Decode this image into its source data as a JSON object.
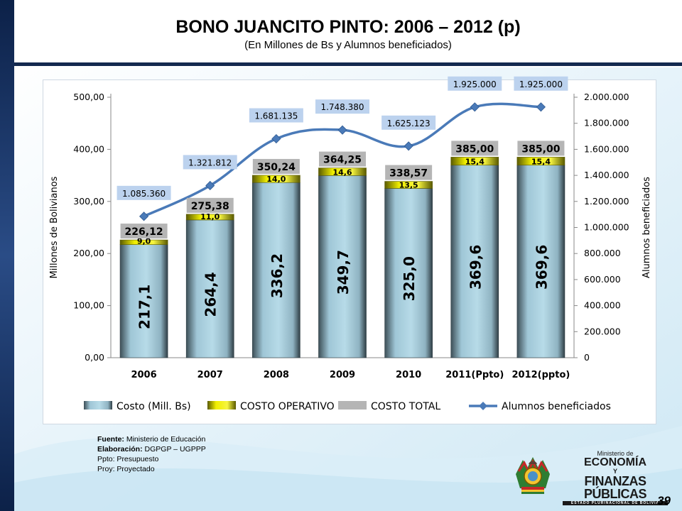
{
  "header": {
    "title": "BONO JUANCITO PINTO: 2006 – 2012 (p)",
    "subtitle": "(En Millones de Bs y Alumnos beneficiados)"
  },
  "chart_data": {
    "type": "bar",
    "stacked": true,
    "categories": [
      "2006",
      "2007",
      "2008",
      "2009",
      "2010",
      "2011(Ppto)",
      "2012(ppto)"
    ],
    "series": [
      {
        "name": "Costo (Mill. Bs)",
        "type": "bar",
        "axis": "left",
        "values": [
          217.1,
          264.4,
          336.2,
          349.7,
          325.0,
          369.6,
          369.6
        ],
        "labels": [
          "217,1",
          "264,4",
          "336,2",
          "349,7",
          "325,0",
          "369,6",
          "369,6"
        ]
      },
      {
        "name": "COSTO OPERATIVO",
        "type": "bar",
        "axis": "left",
        "values": [
          9.0,
          11.0,
          14.0,
          14.6,
          13.5,
          15.4,
          15.4
        ],
        "labels": [
          "9,0",
          "11,0",
          "14,0",
          "14,6",
          "13,5",
          "15,4",
          "15,4"
        ]
      },
      {
        "name": "COSTO TOTAL",
        "type": "label",
        "axis": "left",
        "values": [
          226.12,
          275.38,
          350.24,
          364.25,
          338.57,
          385.0,
          385.0
        ],
        "labels": [
          "226,12",
          "275,38",
          "350,24",
          "364,25",
          "338,57",
          "385,00",
          "385,00"
        ]
      },
      {
        "name": "Alumnos beneficiados",
        "type": "line",
        "axis": "right",
        "values": [
          1085360,
          1321812,
          1681135,
          1748380,
          1625123,
          1925000,
          1925000
        ],
        "labels": [
          "1.085.360",
          "1.321.812",
          "1.681.135",
          "1.748.380",
          "1.625.123",
          "1.925.000",
          "1.925.000"
        ]
      }
    ],
    "ylabel": "Millones de Bolivianos",
    "y2label": "Alumnos beneficiados",
    "ylim": [
      0,
      500
    ],
    "y2lim": [
      0,
      2000000
    ],
    "yticks": [
      "0,00",
      "100,00",
      "200,00",
      "300,00",
      "400,00",
      "500,00"
    ],
    "y2ticks": [
      "0",
      "200.000",
      "400.000",
      "600.000",
      "800.000",
      "1.000.000",
      "1.200.000",
      "1.400.000",
      "1.600.000",
      "1.800.000",
      "2.000.000"
    ],
    "grid": false,
    "legend_position": "bottom",
    "colors": {
      "costo": "#9fc6d6",
      "operativo": "#f0ee00",
      "total_label": "#b5b5b5",
      "line": "#4a7ab8",
      "line_label": "#bcd2ee"
    }
  },
  "notes": {
    "fuente_label": "Fuente:",
    "fuente_value": "Ministerio de Educación",
    "elaboracion_label": "Elaboración:",
    "elaboracion_value": "DGPGP – UGPPP",
    "ppto": "Ppto: Presupuesto",
    "proy": "Proy: Proyectado"
  },
  "logo": {
    "line1": "Ministerio de",
    "line2": "ECONOMÍA",
    "line3": "Y",
    "line4": "FINANZAS PÚBLICAS",
    "line5": "ESTADO PLURINACIONAL DE BOLIVIA"
  },
  "page_number": "39"
}
